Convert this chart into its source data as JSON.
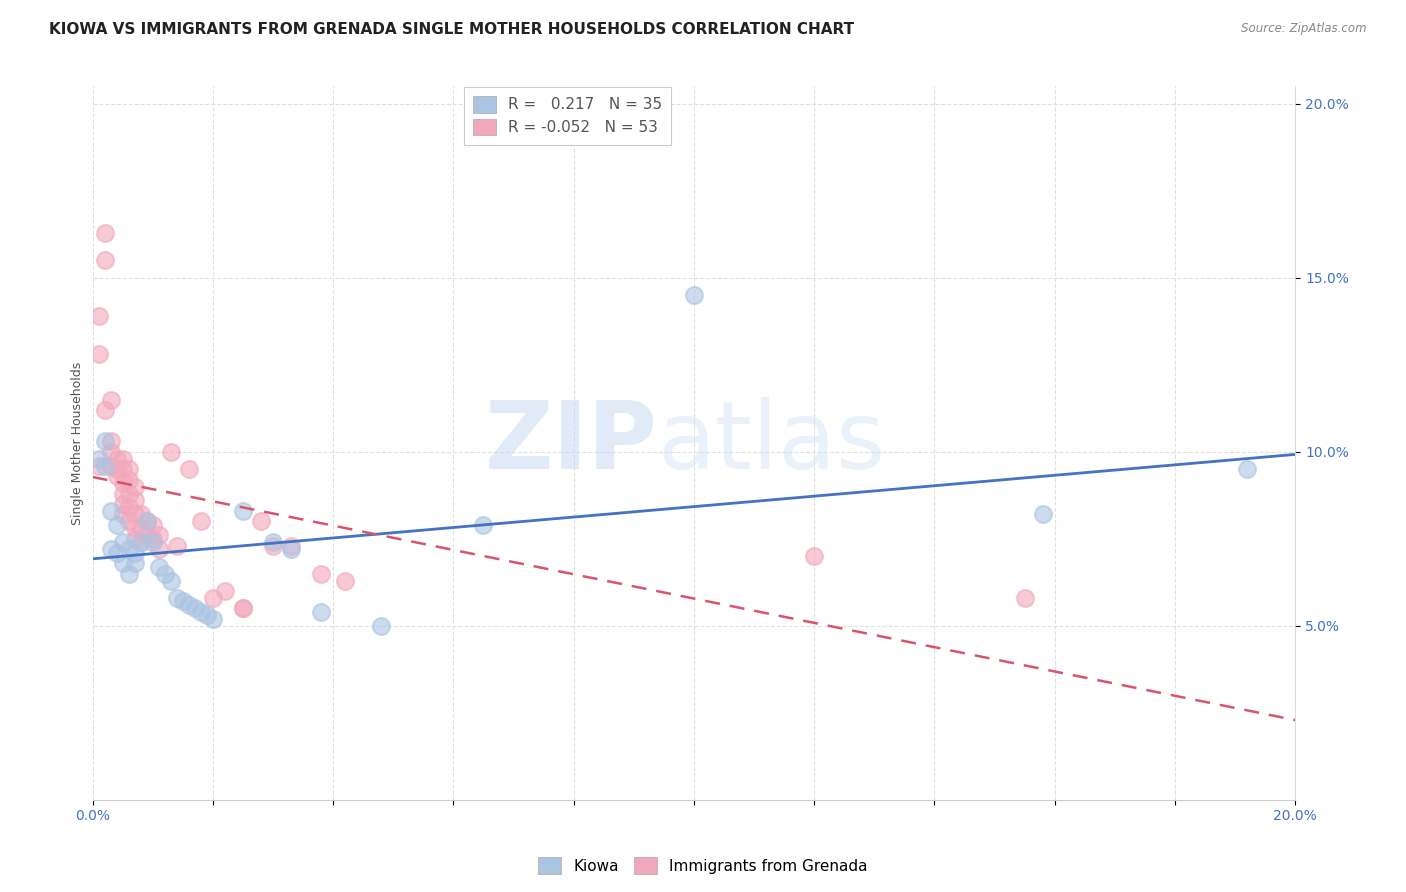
{
  "title": "KIOWA VS IMMIGRANTS FROM GRENADA SINGLE MOTHER HOUSEHOLDS CORRELATION CHART",
  "source": "Source: ZipAtlas.com",
  "ylabel": "Single Mother Households",
  "xlim": [
    0.0,
    0.2
  ],
  "ylim": [
    0.0,
    0.205
  ],
  "xticks": [
    0.0,
    0.02,
    0.04,
    0.06,
    0.08,
    0.1,
    0.12,
    0.14,
    0.16,
    0.18,
    0.2
  ],
  "yticks_right": [
    0.05,
    0.1,
    0.15,
    0.2
  ],
  "yticklabels_right": [
    "5.0%",
    "10.0%",
    "15.0%",
    "20.0%"
  ],
  "xticklabels_bottom": [
    "0.0%",
    "",
    "",
    "",
    "",
    "",
    "",
    "",
    "",
    "",
    "20.0%"
  ],
  "legend_labels": [
    "Kiowa",
    "Immigrants from Grenada"
  ],
  "kiowa_color": "#aac4e2",
  "grenada_color": "#f2a8bc",
  "kiowa_line_color": "#4472c4",
  "grenada_line_color": "#d9536a",
  "R_kiowa": 0.217,
  "N_kiowa": 35,
  "R_grenada": -0.052,
  "N_grenada": 53,
  "kiowa_scatter": [
    [
      0.001,
      0.098
    ],
    [
      0.002,
      0.096
    ],
    [
      0.002,
      0.103
    ],
    [
      0.003,
      0.083
    ],
    [
      0.003,
      0.072
    ],
    [
      0.004,
      0.079
    ],
    [
      0.004,
      0.071
    ],
    [
      0.005,
      0.074
    ],
    [
      0.005,
      0.068
    ],
    [
      0.006,
      0.072
    ],
    [
      0.006,
      0.065
    ],
    [
      0.007,
      0.071
    ],
    [
      0.007,
      0.068
    ],
    [
      0.008,
      0.074
    ],
    [
      0.009,
      0.08
    ],
    [
      0.01,
      0.074
    ],
    [
      0.011,
      0.067
    ],
    [
      0.012,
      0.065
    ],
    [
      0.013,
      0.063
    ],
    [
      0.014,
      0.058
    ],
    [
      0.015,
      0.057
    ],
    [
      0.016,
      0.056
    ],
    [
      0.017,
      0.055
    ],
    [
      0.018,
      0.054
    ],
    [
      0.019,
      0.053
    ],
    [
      0.02,
      0.052
    ],
    [
      0.025,
      0.083
    ],
    [
      0.03,
      0.074
    ],
    [
      0.033,
      0.072
    ],
    [
      0.038,
      0.054
    ],
    [
      0.048,
      0.05
    ],
    [
      0.065,
      0.079
    ],
    [
      0.1,
      0.145
    ],
    [
      0.158,
      0.082
    ],
    [
      0.192,
      0.095
    ]
  ],
  "grenada_scatter": [
    [
      0.001,
      0.139
    ],
    [
      0.001,
      0.128
    ],
    [
      0.001,
      0.096
    ],
    [
      0.002,
      0.155
    ],
    [
      0.002,
      0.163
    ],
    [
      0.002,
      0.112
    ],
    [
      0.003,
      0.115
    ],
    [
      0.003,
      0.103
    ],
    [
      0.003,
      0.1
    ],
    [
      0.003,
      0.096
    ],
    [
      0.004,
      0.098
    ],
    [
      0.004,
      0.095
    ],
    [
      0.004,
      0.093
    ],
    [
      0.005,
      0.098
    ],
    [
      0.005,
      0.095
    ],
    [
      0.005,
      0.091
    ],
    [
      0.005,
      0.088
    ],
    [
      0.005,
      0.085
    ],
    [
      0.005,
      0.082
    ],
    [
      0.006,
      0.095
    ],
    [
      0.006,
      0.092
    ],
    [
      0.006,
      0.088
    ],
    [
      0.006,
      0.084
    ],
    [
      0.006,
      0.08
    ],
    [
      0.007,
      0.09
    ],
    [
      0.007,
      0.086
    ],
    [
      0.007,
      0.082
    ],
    [
      0.007,
      0.078
    ],
    [
      0.007,
      0.075
    ],
    [
      0.008,
      0.082
    ],
    [
      0.008,
      0.078
    ],
    [
      0.008,
      0.074
    ],
    [
      0.009,
      0.08
    ],
    [
      0.009,
      0.076
    ],
    [
      0.01,
      0.079
    ],
    [
      0.01,
      0.075
    ],
    [
      0.011,
      0.076
    ],
    [
      0.011,
      0.072
    ],
    [
      0.013,
      0.1
    ],
    [
      0.014,
      0.073
    ],
    [
      0.016,
      0.095
    ],
    [
      0.018,
      0.08
    ],
    [
      0.02,
      0.058
    ],
    [
      0.022,
      0.06
    ],
    [
      0.025,
      0.055
    ],
    [
      0.025,
      0.055
    ],
    [
      0.028,
      0.08
    ],
    [
      0.03,
      0.073
    ],
    [
      0.033,
      0.073
    ],
    [
      0.038,
      0.065
    ],
    [
      0.042,
      0.063
    ],
    [
      0.12,
      0.07
    ],
    [
      0.155,
      0.058
    ]
  ],
  "watermark_zip": "ZIP",
  "watermark_atlas": "atlas",
  "background_color": "#ffffff",
  "grid_color": "#e0e0e0",
  "title_fontsize": 11,
  "axis_label_fontsize": 9,
  "tick_fontsize": 10,
  "legend_fontsize": 11
}
